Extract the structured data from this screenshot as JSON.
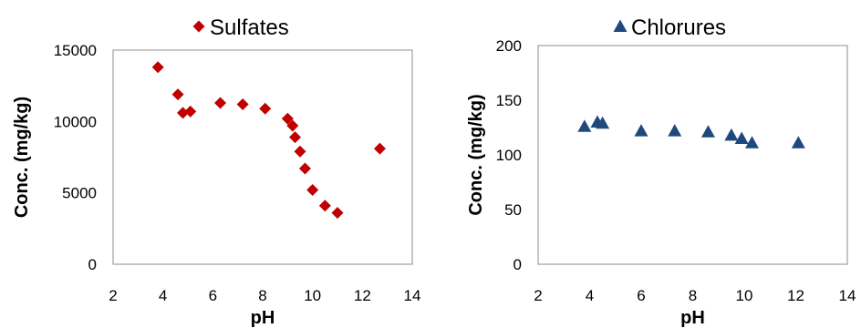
{
  "chart_data": [
    {
      "type": "scatter",
      "xlabel": "pH",
      "ylabel": "Conc. (mg/kg)",
      "xlim": [
        2,
        14
      ],
      "ylim": [
        0,
        15000
      ],
      "x_ticks": [
        "2",
        "4",
        "6",
        "8",
        "10",
        "12",
        "14"
      ],
      "y_ticks": [
        "0",
        "5000",
        "10000",
        "15000"
      ],
      "grid": false,
      "legend_placement": "top-center",
      "series": [
        {
          "name": "Sulfates",
          "marker": "diamond",
          "color": "#c00000",
          "x": [
            3.8,
            4.6,
            4.8,
            5.1,
            6.3,
            7.2,
            8.1,
            9.0,
            9.2,
            9.3,
            9.5,
            9.7,
            10.0,
            10.5,
            11.0,
            12.7
          ],
          "y": [
            13800,
            11900,
            10600,
            10700,
            11300,
            11200,
            10900,
            10200,
            9700,
            8900,
            7900,
            6700,
            5200,
            4100,
            3600,
            8100
          ]
        }
      ]
    },
    {
      "type": "scatter",
      "xlabel": "pH",
      "ylabel": "Conc. (mg/kg)",
      "xlim": [
        2,
        14
      ],
      "ylim": [
        0,
        200
      ],
      "x_ticks": [
        "2",
        "4",
        "6",
        "8",
        "10",
        "12",
        "14"
      ],
      "y_ticks": [
        "0",
        "50",
        "100",
        "150",
        "200"
      ],
      "grid": false,
      "legend_placement": "top-center",
      "series": [
        {
          "name": "Chlorures",
          "marker": "triangle",
          "color": "#1f497d",
          "x": [
            3.8,
            4.3,
            4.5,
            6.0,
            7.3,
            8.6,
            9.5,
            9.9,
            10.3,
            12.1
          ],
          "y": [
            126,
            130,
            129,
            122,
            122,
            121,
            118,
            115,
            111,
            111
          ]
        }
      ]
    }
  ]
}
